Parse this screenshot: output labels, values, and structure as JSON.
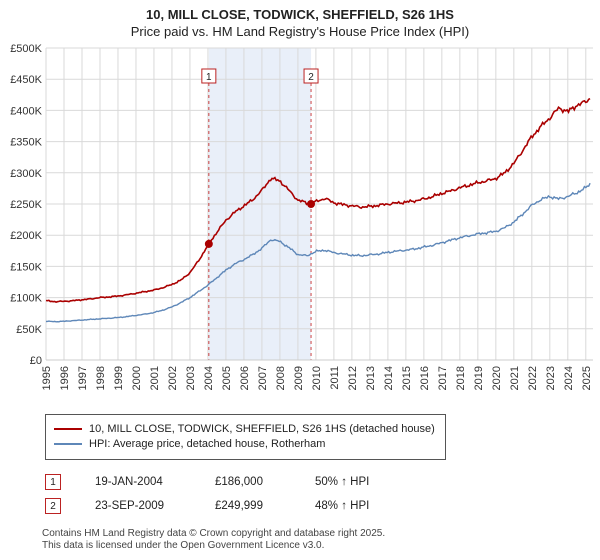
{
  "page": {
    "title": "10, MILL CLOSE, TODWICK, SHEFFIELD, S26 1HS",
    "subtitle": "Price paid vs. HM Land Registry's House Price Index (HPI)"
  },
  "chart_data": {
    "type": "line",
    "title": "10, MILL CLOSE, TODWICK, SHEFFIELD, S26 1HS",
    "subtitle": "Price paid vs. HM Land Registry's House Price Index (HPI)",
    "x_range": [
      1995,
      2025.4
    ],
    "y_range": [
      0,
      500000
    ],
    "y_ticks": [
      0,
      50000,
      100000,
      150000,
      200000,
      250000,
      300000,
      350000,
      400000,
      450000,
      500000
    ],
    "y_tick_labels": [
      "£0",
      "£50K",
      "£100K",
      "£150K",
      "£200K",
      "£250K",
      "£300K",
      "£350K",
      "£400K",
      "£450K",
      "£500K"
    ],
    "x_ticks": [
      1995,
      1996,
      1997,
      1998,
      1999,
      2000,
      2001,
      2002,
      2003,
      2004,
      2005,
      2006,
      2007,
      2008,
      2009,
      2010,
      2011,
      2012,
      2013,
      2014,
      2015,
      2016,
      2017,
      2018,
      2019,
      2020,
      2021,
      2022,
      2023,
      2024,
      2025
    ],
    "grid": true,
    "legend_position": "bottom",
    "colors": {
      "grid": "#d9d9d9",
      "shading": "#e9eff9",
      "event_line": "#cc4444",
      "axis_text": "#333333"
    },
    "shaded_region": {
      "from": 2004.05,
      "to": 2009.73
    },
    "events": [
      {
        "label": "1",
        "x": 2004.05
      },
      {
        "label": "2",
        "x": 2009.73
      }
    ],
    "markers": [
      {
        "label": "1",
        "x": 2004.05,
        "y": 186000
      },
      {
        "label": "2",
        "x": 2009.73,
        "y": 249999
      }
    ],
    "series": [
      {
        "name": "10, MILL CLOSE, TODWICK, SHEFFIELD, S26 1HS (detached house)",
        "color": "#aa0000",
        "points": [
          [
            1995.0,
            95000
          ],
          [
            1995.5,
            93500
          ],
          [
            1996.0,
            94000
          ],
          [
            1996.5,
            95000
          ],
          [
            1997.0,
            96500
          ],
          [
            1997.5,
            98000
          ],
          [
            1998.0,
            100000
          ],
          [
            1998.5,
            101000
          ],
          [
            1999.0,
            102500
          ],
          [
            1999.5,
            104500
          ],
          [
            2000.0,
            107000
          ],
          [
            2000.5,
            109500
          ],
          [
            2001.0,
            112000
          ],
          [
            2001.5,
            116000
          ],
          [
            2002.0,
            121000
          ],
          [
            2002.5,
            128000
          ],
          [
            2003.0,
            140000
          ],
          [
            2003.5,
            160000
          ],
          [
            2004.05,
            186000
          ],
          [
            2004.5,
            205000
          ],
          [
            2005.0,
            224000
          ],
          [
            2005.5,
            237000
          ],
          [
            2006.0,
            247000
          ],
          [
            2006.5,
            257000
          ],
          [
            2007.0,
            272000
          ],
          [
            2007.5,
            291000
          ],
          [
            2008.0,
            287000
          ],
          [
            2008.5,
            272000
          ],
          [
            2009.0,
            256000
          ],
          [
            2009.73,
            249999
          ],
          [
            2010.0,
            254000
          ],
          [
            2010.5,
            259000
          ],
          [
            2011.0,
            252000
          ],
          [
            2011.5,
            249000
          ],
          [
            2012.0,
            247000
          ],
          [
            2012.5,
            245000
          ],
          [
            2013.0,
            246000
          ],
          [
            2013.5,
            248000
          ],
          [
            2014.0,
            250000
          ],
          [
            2014.5,
            251500
          ],
          [
            2015.0,
            253000
          ],
          [
            2015.5,
            255000
          ],
          [
            2016.0,
            258000
          ],
          [
            2016.5,
            262000
          ],
          [
            2017.0,
            267000
          ],
          [
            2017.5,
            271000
          ],
          [
            2018.0,
            276000
          ],
          [
            2018.5,
            280000
          ],
          [
            2019.0,
            284000
          ],
          [
            2019.5,
            287000
          ],
          [
            2020.0,
            291000
          ],
          [
            2020.5,
            300000
          ],
          [
            2021.0,
            315000
          ],
          [
            2021.5,
            336000
          ],
          [
            2022.0,
            358000
          ],
          [
            2022.5,
            374000
          ],
          [
            2023.0,
            388000
          ],
          [
            2023.5,
            404000
          ],
          [
            2024.0,
            398000
          ],
          [
            2024.5,
            408000
          ],
          [
            2025.0,
            414000
          ],
          [
            2025.3,
            421000
          ]
        ]
      },
      {
        "name": "HPI: Average price, detached house, Rotherham",
        "color": "#5e87b8",
        "points": [
          [
            1995.0,
            62000
          ],
          [
            1995.5,
            61500
          ],
          [
            1996.0,
            62000
          ],
          [
            1996.5,
            63000
          ],
          [
            1997.0,
            64000
          ],
          [
            1997.5,
            65000
          ],
          [
            1998.0,
            66000
          ],
          [
            1998.5,
            67000
          ],
          [
            1999.0,
            68000
          ],
          [
            1999.5,
            69500
          ],
          [
            2000.0,
            71500
          ],
          [
            2000.5,
            73500
          ],
          [
            2001.0,
            76000
          ],
          [
            2001.5,
            80000
          ],
          [
            2002.0,
            85000
          ],
          [
            2002.5,
            92000
          ],
          [
            2003.0,
            100000
          ],
          [
            2003.5,
            110000
          ],
          [
            2004.0,
            120000
          ],
          [
            2004.5,
            132000
          ],
          [
            2005.0,
            144000
          ],
          [
            2005.5,
            154000
          ],
          [
            2006.0,
            161000
          ],
          [
            2006.5,
            169000
          ],
          [
            2007.0,
            179000
          ],
          [
            2007.5,
            193000
          ],
          [
            2008.0,
            190000
          ],
          [
            2008.5,
            180000
          ],
          [
            2009.0,
            169000
          ],
          [
            2009.5,
            167000
          ],
          [
            2010.0,
            174000
          ],
          [
            2010.5,
            176000
          ],
          [
            2011.0,
            172000
          ],
          [
            2011.5,
            170000
          ],
          [
            2012.0,
            168000
          ],
          [
            2012.5,
            167000
          ],
          [
            2013.0,
            168500
          ],
          [
            2013.5,
            170000
          ],
          [
            2014.0,
            172500
          ],
          [
            2014.5,
            174500
          ],
          [
            2015.0,
            176000
          ],
          [
            2015.5,
            178000
          ],
          [
            2016.0,
            181000
          ],
          [
            2016.5,
            184000
          ],
          [
            2017.0,
            188000
          ],
          [
            2017.5,
            192000
          ],
          [
            2018.0,
            196000
          ],
          [
            2018.5,
            199000
          ],
          [
            2019.0,
            202000
          ],
          [
            2019.5,
            204000
          ],
          [
            2020.0,
            206000
          ],
          [
            2020.5,
            212000
          ],
          [
            2021.0,
            221000
          ],
          [
            2021.5,
            234000
          ],
          [
            2022.0,
            248000
          ],
          [
            2022.5,
            257000
          ],
          [
            2023.0,
            262000
          ],
          [
            2023.5,
            258000
          ],
          [
            2024.0,
            262000
          ],
          [
            2024.5,
            268000
          ],
          [
            2025.0,
            276000
          ],
          [
            2025.3,
            284000
          ]
        ]
      }
    ]
  },
  "legend": {
    "items": [
      {
        "label": "10, MILL CLOSE, TODWICK, SHEFFIELD, S26 1HS (detached house)",
        "color": "#aa0000"
      },
      {
        "label": "HPI: Average price, detached house, Rotherham",
        "color": "#5e87b8"
      }
    ]
  },
  "transactions": [
    {
      "num": "1",
      "date": "19-JAN-2004",
      "price": "£186,000",
      "hpi": "50% ↑ HPI"
    },
    {
      "num": "2",
      "date": "23-SEP-2009",
      "price": "£249,999",
      "hpi": "48% ↑ HPI"
    }
  ],
  "footer": {
    "line1": "Contains HM Land Registry data © Crown copyright and database right 2025.",
    "line2": "This data is licensed under the Open Government Licence v3.0."
  }
}
